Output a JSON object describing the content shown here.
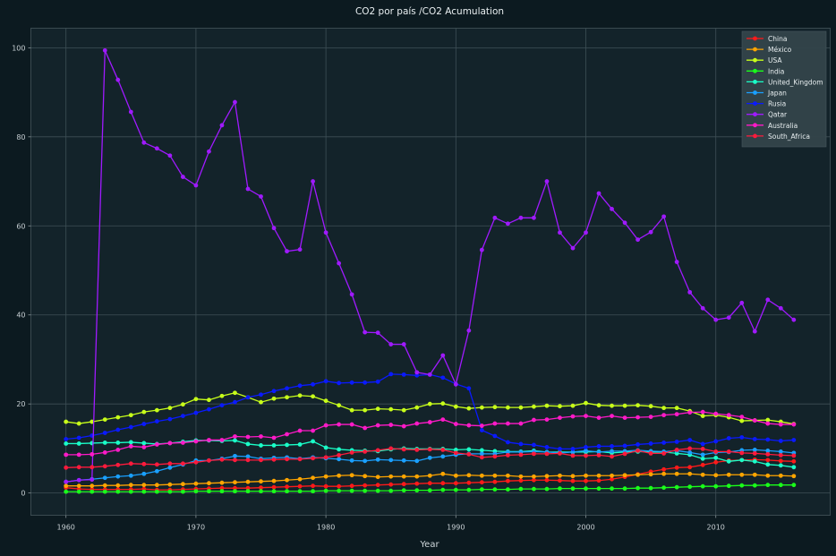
{
  "chart_data": {
    "type": "line",
    "title": "CO2 por país /CO2 Acumulation",
    "xlabel": "Year",
    "ylabel": "",
    "xlim": [
      1957.3,
      2018.8
    ],
    "ylim": [
      -5,
      104.4
    ],
    "xticks": [
      1960,
      1970,
      1980,
      1990,
      2000,
      2010
    ],
    "yticks": [
      0,
      20,
      40,
      60,
      80,
      100
    ],
    "grid": true,
    "legend_position": "top-right",
    "x": [
      1960,
      1961,
      1962,
      1963,
      1964,
      1965,
      1966,
      1967,
      1968,
      1969,
      1970,
      1971,
      1972,
      1973,
      1974,
      1975,
      1976,
      1977,
      1978,
      1979,
      1980,
      1981,
      1982,
      1983,
      1984,
      1985,
      1986,
      1987,
      1988,
      1989,
      1990,
      1991,
      1992,
      1993,
      1994,
      1995,
      1996,
      1997,
      1998,
      1999,
      2000,
      2001,
      2002,
      2003,
      2004,
      2005,
      2006,
      2007,
      2008,
      2009,
      2010,
      2011,
      2012,
      2013,
      2014,
      2015,
      2016
    ],
    "series": [
      {
        "name": "China",
        "color": "#ff1a1a",
        "values": [
          1.2,
          0.9,
          0.8,
          0.8,
          0.8,
          0.8,
          0.9,
          0.7,
          0.7,
          0.8,
          0.9,
          1.0,
          1.1,
          1.1,
          1.1,
          1.2,
          1.3,
          1.4,
          1.5,
          1.6,
          1.5,
          1.5,
          1.6,
          1.7,
          1.8,
          1.9,
          2.0,
          2.1,
          2.2,
          2.2,
          2.2,
          2.3,
          2.4,
          2.5,
          2.7,
          2.8,
          2.9,
          2.9,
          2.8,
          2.7,
          2.7,
          2.8,
          3.1,
          3.6,
          4.2,
          4.8,
          5.3,
          5.7,
          5.8,
          6.3,
          6.9,
          7.3,
          7.4,
          7.5,
          7.4,
          7.2,
          7.1
        ]
      },
      {
        "name": "México",
        "color": "#ffa500",
        "values": [
          1.6,
          1.6,
          1.6,
          1.7,
          1.7,
          1.8,
          1.8,
          1.8,
          1.9,
          2.0,
          2.1,
          2.2,
          2.3,
          2.4,
          2.5,
          2.6,
          2.7,
          2.9,
          3.1,
          3.4,
          3.7,
          3.9,
          4.0,
          3.8,
          3.6,
          3.7,
          3.7,
          3.7,
          3.9,
          4.3,
          3.9,
          4.0,
          3.9,
          3.9,
          3.9,
          3.7,
          3.7,
          3.8,
          3.9,
          3.8,
          3.9,
          3.9,
          3.9,
          4.0,
          4.1,
          4.2,
          4.3,
          4.3,
          4.3,
          4.1,
          4.0,
          4.1,
          4.1,
          4.1,
          3.9,
          3.9,
          3.8
        ]
      },
      {
        "name": "USA",
        "color": "#c8ff1a",
        "values": [
          16.0,
          15.6,
          16.0,
          16.5,
          17.0,
          17.5,
          18.2,
          18.6,
          19.1,
          19.9,
          21.1,
          20.9,
          21.8,
          22.5,
          21.5,
          20.4,
          21.2,
          21.5,
          21.9,
          21.7,
          20.7,
          19.7,
          18.6,
          18.6,
          18.9,
          18.8,
          18.6,
          19.2,
          20.0,
          20.1,
          19.4,
          19.0,
          19.2,
          19.3,
          19.2,
          19.2,
          19.4,
          19.6,
          19.5,
          19.6,
          20.2,
          19.7,
          19.6,
          19.6,
          19.7,
          19.5,
          19.1,
          19.1,
          18.4,
          17.3,
          17.5,
          17.0,
          16.2,
          16.3,
          16.4,
          16.0,
          15.5
        ]
      },
      {
        "name": "India",
        "color": "#1aff1a",
        "values": [
          0.3,
          0.3,
          0.3,
          0.3,
          0.3,
          0.3,
          0.3,
          0.3,
          0.3,
          0.3,
          0.4,
          0.4,
          0.4,
          0.4,
          0.4,
          0.4,
          0.4,
          0.4,
          0.4,
          0.4,
          0.5,
          0.5,
          0.5,
          0.5,
          0.5,
          0.5,
          0.6,
          0.6,
          0.6,
          0.7,
          0.7,
          0.7,
          0.8,
          0.8,
          0.8,
          0.9,
          0.9,
          0.9,
          1.0,
          1.0,
          1.0,
          1.0,
          1.0,
          1.0,
          1.1,
          1.1,
          1.2,
          1.3,
          1.4,
          1.5,
          1.5,
          1.6,
          1.7,
          1.7,
          1.8,
          1.8,
          1.8
        ]
      },
      {
        "name": "United_Kingdom",
        "color": "#1affc8",
        "values": [
          11.1,
          11.1,
          11.2,
          11.3,
          11.3,
          11.4,
          11.2,
          11.0,
          11.2,
          11.5,
          11.8,
          11.8,
          11.7,
          11.8,
          11.0,
          10.7,
          10.7,
          10.8,
          10.9,
          11.6,
          10.2,
          9.8,
          9.6,
          9.5,
          9.4,
          9.8,
          10.0,
          9.9,
          9.9,
          9.9,
          9.7,
          9.8,
          9.6,
          9.4,
          9.3,
          9.3,
          9.5,
          9.2,
          9.2,
          9.2,
          9.2,
          9.3,
          9.0,
          9.2,
          9.3,
          9.2,
          9.2,
          8.9,
          8.6,
          7.7,
          7.9,
          7.1,
          7.4,
          7.1,
          6.4,
          6.2,
          5.8
        ]
      },
      {
        "name": "Japan",
        "color": "#1aa0ff",
        "values": [
          2.5,
          2.9,
          3.1,
          3.4,
          3.7,
          3.9,
          4.3,
          4.9,
          5.7,
          6.4,
          7.3,
          7.3,
          7.7,
          8.3,
          8.2,
          7.7,
          7.9,
          8.0,
          7.7,
          8.0,
          7.8,
          7.6,
          7.3,
          7.2,
          7.5,
          7.4,
          7.3,
          7.2,
          7.9,
          8.2,
          8.6,
          8.8,
          8.8,
          8.8,
          9.2,
          9.2,
          9.3,
          9.2,
          9.0,
          9.2,
          9.5,
          9.2,
          9.4,
          9.4,
          9.6,
          9.4,
          9.3,
          9.5,
          9.1,
          8.6,
          9.1,
          9.2,
          9.6,
          9.7,
          9.5,
          9.3,
          9.0
        ]
      },
      {
        "name": "Rusia",
        "color": "#0a1aff",
        "values": [
          12.1,
          12.4,
          12.9,
          13.5,
          14.2,
          14.8,
          15.5,
          16.1,
          16.6,
          17.3,
          18.0,
          18.8,
          19.7,
          20.4,
          21.5,
          22.1,
          22.9,
          23.5,
          24.1,
          24.4,
          25.1,
          24.7,
          24.8,
          24.8,
          25.0,
          26.7,
          26.6,
          26.4,
          26.6,
          25.9,
          24.5,
          23.5,
          14.1,
          12.8,
          11.4,
          11.0,
          10.8,
          10.3,
          9.9,
          9.9,
          10.3,
          10.5,
          10.5,
          10.6,
          10.9,
          11.1,
          11.3,
          11.5,
          11.9,
          11.0,
          11.6,
          12.3,
          12.5,
          12.1,
          12.0,
          11.7,
          11.9
        ]
      },
      {
        "name": "Qatar",
        "color": "#a01aff",
        "values": [
          2.5,
          2.9,
          3.0,
          99.4,
          92.8,
          85.6,
          78.7,
          77.4,
          75.8,
          71.0,
          69.1,
          76.7,
          82.6,
          87.8,
          68.3,
          66.6,
          59.5,
          54.3,
          54.7,
          70.0,
          58.5,
          51.6,
          44.6,
          36.1,
          36.0,
          33.4,
          33.4,
          27.1,
          26.6,
          30.9,
          24.4,
          36.5,
          54.6,
          61.8,
          60.5,
          61.8,
          61.8,
          70.0,
          58.5,
          55.0,
          58.5,
          67.3,
          63.8,
          60.7,
          56.9,
          58.6,
          62.1,
          51.9,
          45.1,
          41.5,
          38.9,
          39.4,
          42.7,
          36.3,
          43.4,
          41.5,
          38.9
        ]
      },
      {
        "name": "Australia",
        "color": "#ff1ac8",
        "values": [
          8.6,
          8.6,
          8.7,
          9.1,
          9.7,
          10.5,
          10.3,
          10.9,
          11.2,
          11.3,
          11.6,
          11.9,
          11.9,
          12.7,
          12.6,
          12.7,
          12.4,
          13.2,
          14.0,
          14.0,
          15.2,
          15.4,
          15.4,
          14.6,
          15.2,
          15.3,
          15.0,
          15.6,
          15.9,
          16.5,
          15.5,
          15.2,
          15.1,
          15.6,
          15.6,
          15.6,
          16.4,
          16.5,
          16.9,
          17.2,
          17.3,
          16.9,
          17.3,
          16.9,
          17.0,
          17.1,
          17.5,
          17.7,
          18.1,
          18.2,
          17.8,
          17.5,
          17.1,
          16.3,
          15.6,
          15.4,
          15.4
        ]
      },
      {
        "name": "South_Africa",
        "color": "#ff1a3c",
        "values": [
          5.7,
          5.8,
          5.8,
          6.0,
          6.3,
          6.6,
          6.5,
          6.4,
          6.6,
          6.6,
          6.9,
          7.3,
          7.5,
          7.4,
          7.4,
          7.4,
          7.5,
          7.6,
          7.6,
          7.8,
          8.0,
          8.5,
          9.1,
          9.3,
          9.6,
          10.0,
          9.8,
          9.7,
          9.8,
          9.7,
          9.0,
          8.7,
          8.0,
          8.2,
          8.5,
          8.6,
          8.8,
          8.8,
          8.9,
          8.4,
          8.4,
          8.5,
          8.2,
          8.8,
          9.5,
          8.9,
          8.9,
          9.7,
          10.0,
          9.9,
          9.3,
          9.3,
          9.0,
          8.9,
          8.7,
          8.5,
          8.4
        ]
      }
    ]
  }
}
